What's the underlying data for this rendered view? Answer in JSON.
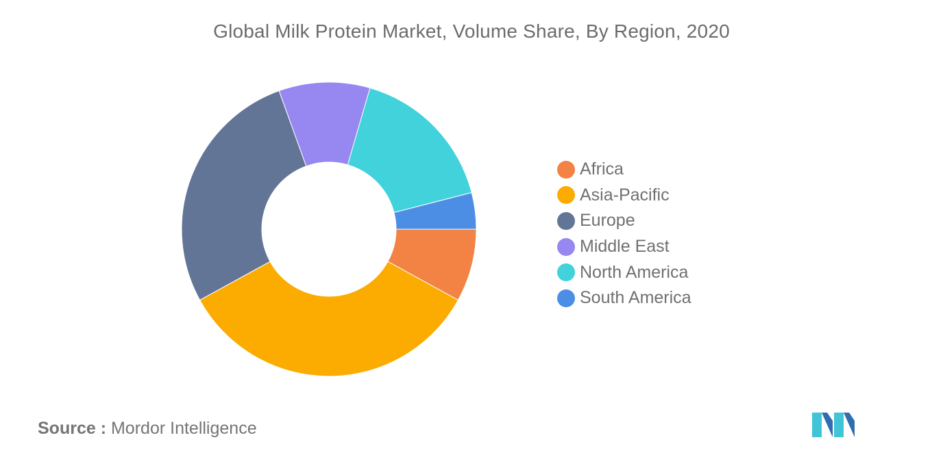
{
  "chart_data": {
    "type": "pie",
    "title": "Global Milk Protein Market, Volume Share, By Region, 2020",
    "donut": true,
    "legend_position": "right",
    "categories": [
      "Africa",
      "Asia-Pacific",
      "Europe",
      "Middle East",
      "North America",
      "South America"
    ],
    "values": [
      8.0,
      34.0,
      27.5,
      10.0,
      16.5,
      4.0
    ],
    "colors": [
      "#f28345",
      "#fcab00",
      "#637597",
      "#9688f0",
      "#41d2db",
      "#4c8ee4"
    ],
    "start_order": [
      "Africa",
      "Asia-Pacific",
      "Europe",
      "Middle East",
      "North America",
      "South America"
    ]
  },
  "source": {
    "key": "Source :",
    "value": "Mordor Intelligence"
  },
  "logo": {
    "name": "mordor-intelligence-logo",
    "colors": [
      "#41c3d8",
      "#2f6cb0"
    ]
  }
}
